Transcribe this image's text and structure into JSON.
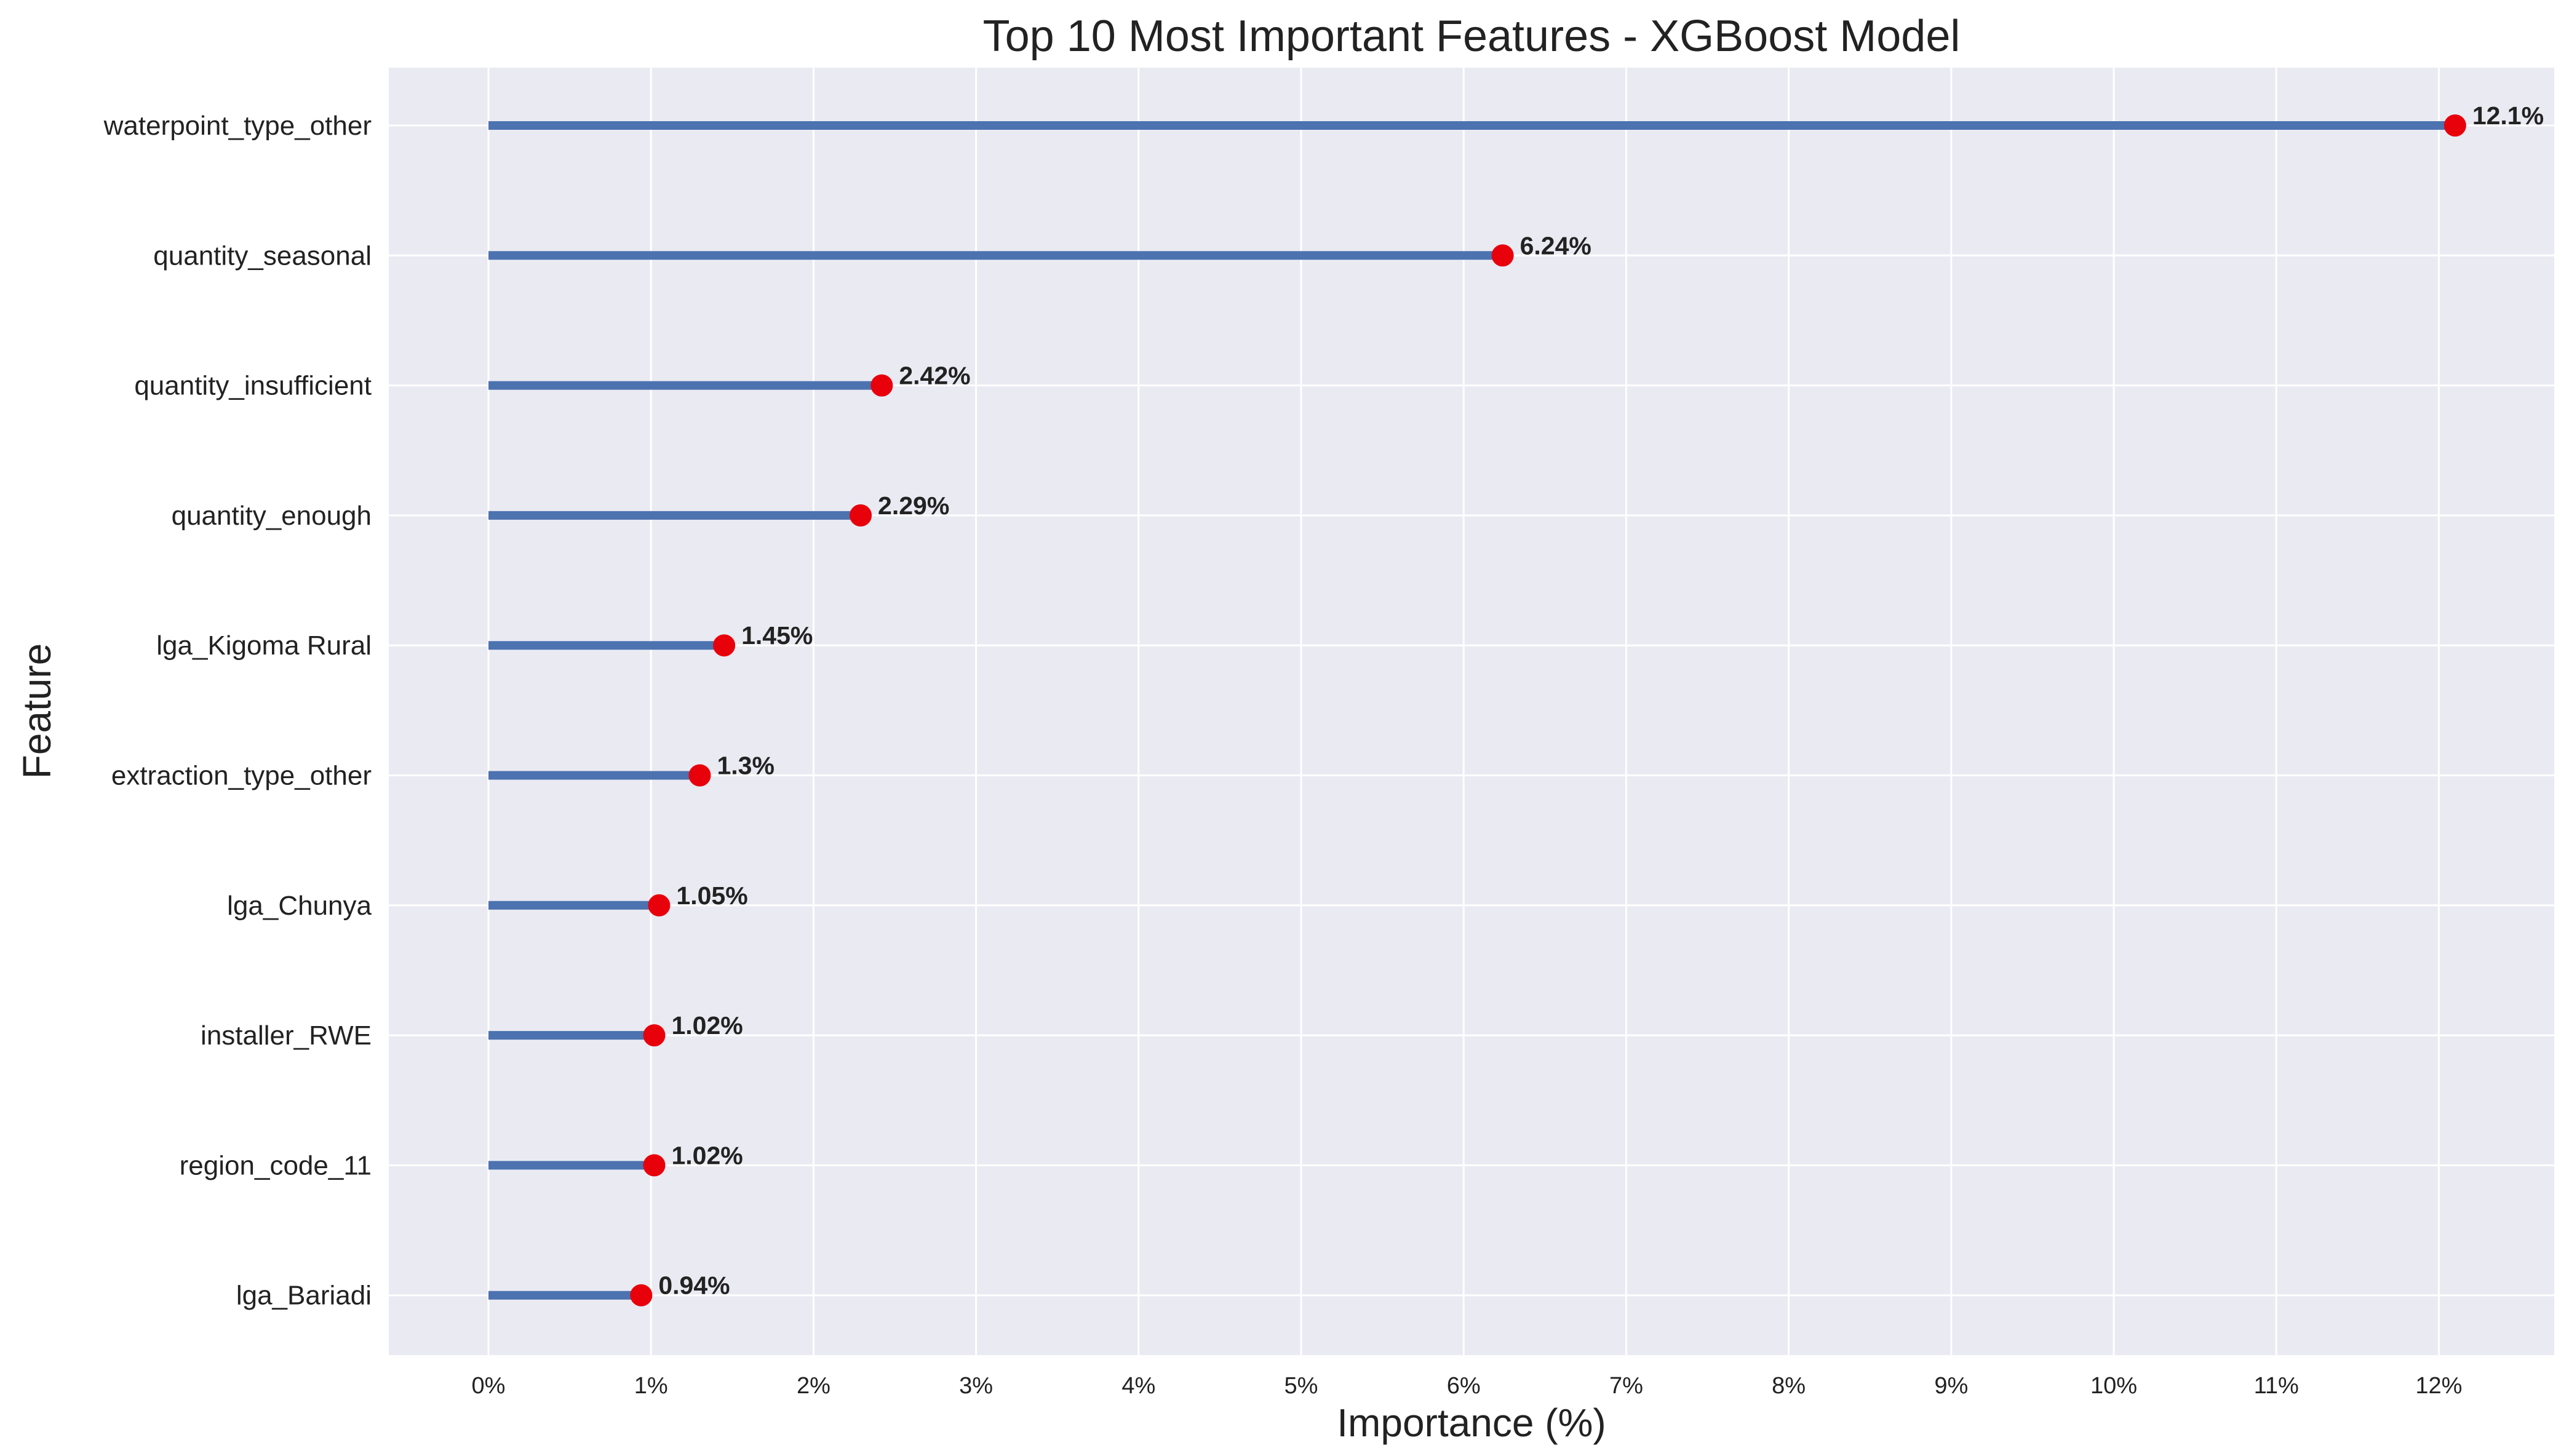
{
  "chart_data": {
    "type": "lollipop",
    "title": "Top 10 Most Important Features - XGBoost Model",
    "xlabel": "Importance (%)",
    "ylabel": "Feature",
    "xlim": [
      -0.6,
      12.7
    ],
    "xticks": [
      0,
      1,
      2,
      3,
      4,
      5,
      6,
      7,
      8,
      9,
      10,
      11,
      12
    ],
    "xtick_labels": [
      "0%",
      "1%",
      "2%",
      "3%",
      "4%",
      "5%",
      "6%",
      "7%",
      "8%",
      "9%",
      "10%",
      "11%",
      "12%"
    ],
    "grid": true,
    "categories": [
      "waterpoint_type_other",
      "quantity_seasonal",
      "quantity_insufficient",
      "quantity_enough",
      "lga_Kigoma Rural",
      "extraction_type_other",
      "lga_Chunya",
      "installer_RWE",
      "region_code_11",
      "lga_Bariadi"
    ],
    "values": [
      12.1,
      6.24,
      2.42,
      2.29,
      1.45,
      1.3,
      1.05,
      1.02,
      1.02,
      0.94
    ],
    "value_labels": [
      "12.1%",
      "6.24%",
      "2.42%",
      "2.29%",
      "1.45%",
      "1.3%",
      "1.05%",
      "1.02%",
      "1.02%",
      "0.94%"
    ],
    "colors": {
      "stem": "#4c72b0",
      "marker": "#e8000b",
      "background": "#eaeaf2",
      "grid": "#ffffff"
    }
  }
}
